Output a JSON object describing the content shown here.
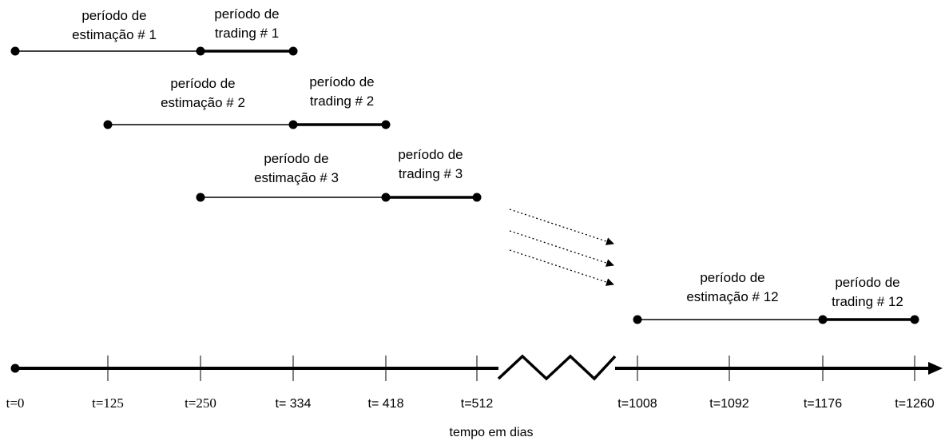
{
  "periods": [
    {
      "estimation_label": [
        "período de",
        "estimação # 1"
      ],
      "trading_label": [
        "período de",
        "trading # 1"
      ]
    },
    {
      "estimation_label": [
        "período de",
        "estimação # 2"
      ],
      "trading_label": [
        "período de",
        "trading # 2"
      ]
    },
    {
      "estimation_label": [
        "período de",
        "estimação # 3"
      ],
      "trading_label": [
        "período de",
        "trading # 3"
      ]
    },
    {
      "estimation_label": [
        "período de",
        "estimação # 12"
      ],
      "trading_label": [
        "período de",
        "trading # 12"
      ]
    }
  ],
  "axis": {
    "ticks": [
      "t=0",
      "t=125",
      "t=250",
      "t= 334",
      "t= 418",
      "t=512",
      "t=1008",
      "t=1092",
      "t=1176",
      "t=1260"
    ],
    "label": "tempo em dias"
  }
}
